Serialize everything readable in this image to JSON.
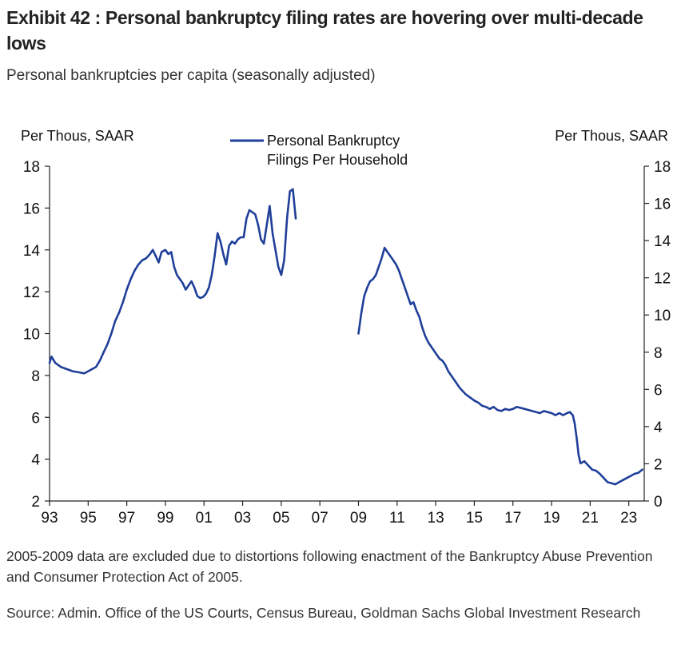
{
  "header": {
    "title": "Exhibit 42 : Personal bankruptcy filing rates are hovering over multi-decade lows",
    "subtitle": "Personal bankruptcies per capita (seasonally adjusted)"
  },
  "notes": {
    "footnote": "2005-2009 data are excluded due to distortions following enactment of the Bankruptcy Abuse Prevention and Consumer Protection Act of 2005.",
    "source": "Source: Admin. Office of the US Courts, Census Bureau, Goldman Sachs Global Investment Research"
  },
  "colors": {
    "line": "#1f3f99",
    "axis": "#222222"
  },
  "chart_data": {
    "type": "line",
    "title": "Exhibit 42 : Personal bankruptcy filing rates are hovering over multi-decade lows",
    "ylabel_left": "Per Thous,  SAAR",
    "ylabel_right": "Per Thous,  SAAR",
    "legend": {
      "label_line1": "Personal Bankruptcy",
      "label_line2": "Filings Per Household",
      "position": "top-center"
    },
    "xlim": [
      1993,
      2023.8
    ],
    "ylim_left": [
      2,
      18
    ],
    "ylim_right": [
      0,
      18
    ],
    "yticks_left": [
      2,
      4,
      6,
      8,
      10,
      12,
      14,
      16,
      18
    ],
    "yticks_right": [
      0,
      2,
      4,
      6,
      8,
      10,
      12,
      14,
      16,
      18
    ],
    "xticks": [
      {
        "value": 1993,
        "label": "93"
      },
      {
        "value": 1995,
        "label": "95"
      },
      {
        "value": 1997,
        "label": "97"
      },
      {
        "value": 1999,
        "label": "99"
      },
      {
        "value": 2001,
        "label": "01"
      },
      {
        "value": 2003,
        "label": "03"
      },
      {
        "value": 2005,
        "label": "05"
      },
      {
        "value": 2007,
        "label": "07"
      },
      {
        "value": 2009,
        "label": "09"
      },
      {
        "value": 2011,
        "label": "11"
      },
      {
        "value": 2013,
        "label": "13"
      },
      {
        "value": 2015,
        "label": "15"
      },
      {
        "value": 2017,
        "label": "17"
      },
      {
        "value": 2019,
        "label": "19"
      },
      {
        "value": 2021,
        "label": "21"
      },
      {
        "value": 2023,
        "label": "23"
      }
    ],
    "series": [
      {
        "name": "Personal Bankruptcy Filings Per Household",
        "segments": [
          [
            [
              1993.0,
              8.6
            ],
            [
              1993.1,
              8.9
            ],
            [
              1993.3,
              8.6
            ],
            [
              1993.6,
              8.4
            ],
            [
              1993.9,
              8.3
            ],
            [
              1994.2,
              8.2
            ],
            [
              1994.5,
              8.15
            ],
            [
              1994.8,
              8.1
            ],
            [
              1995.0,
              8.2
            ],
            [
              1995.2,
              8.3
            ],
            [
              1995.4,
              8.4
            ],
            [
              1995.6,
              8.7
            ],
            [
              1995.8,
              9.1
            ],
            [
              1996.0,
              9.5
            ],
            [
              1996.2,
              10.0
            ],
            [
              1996.4,
              10.6
            ],
            [
              1996.6,
              11.0
            ],
            [
              1996.8,
              11.5
            ],
            [
              1997.0,
              12.1
            ],
            [
              1997.2,
              12.6
            ],
            [
              1997.4,
              13.0
            ],
            [
              1997.6,
              13.3
            ],
            [
              1997.8,
              13.5
            ],
            [
              1998.0,
              13.6
            ],
            [
              1998.2,
              13.8
            ],
            [
              1998.35,
              14.0
            ],
            [
              1998.5,
              13.7
            ],
            [
              1998.65,
              13.4
            ],
            [
              1998.8,
              13.9
            ],
            [
              1999.0,
              14.0
            ],
            [
              1999.15,
              13.8
            ],
            [
              1999.3,
              13.9
            ],
            [
              1999.45,
              13.2
            ],
            [
              1999.6,
              12.8
            ],
            [
              1999.75,
              12.6
            ],
            [
              1999.9,
              12.4
            ],
            [
              2000.05,
              12.1
            ],
            [
              2000.2,
              12.3
            ],
            [
              2000.35,
              12.5
            ],
            [
              2000.5,
              12.2
            ],
            [
              2000.65,
              11.8
            ],
            [
              2000.8,
              11.7
            ],
            [
              2000.95,
              11.75
            ],
            [
              2001.1,
              11.9
            ],
            [
              2001.25,
              12.2
            ],
            [
              2001.4,
              12.8
            ],
            [
              2001.55,
              13.7
            ],
            [
              2001.7,
              14.8
            ],
            [
              2001.85,
              14.4
            ],
            [
              2002.0,
              13.8
            ],
            [
              2002.15,
              13.3
            ],
            [
              2002.3,
              14.2
            ],
            [
              2002.45,
              14.4
            ],
            [
              2002.6,
              14.3
            ],
            [
              2002.75,
              14.5
            ],
            [
              2002.9,
              14.6
            ],
            [
              2003.05,
              14.6
            ],
            [
              2003.2,
              15.5
            ],
            [
              2003.35,
              15.9
            ],
            [
              2003.5,
              15.8
            ],
            [
              2003.65,
              15.7
            ],
            [
              2003.8,
              15.2
            ],
            [
              2003.95,
              14.5
            ],
            [
              2004.1,
              14.3
            ],
            [
              2004.25,
              15.2
            ],
            [
              2004.4,
              16.1
            ],
            [
              2004.55,
              14.8
            ],
            [
              2004.7,
              14.0
            ],
            [
              2004.85,
              13.2
            ],
            [
              2005.0,
              12.8
            ],
            [
              2005.15,
              13.5
            ],
            [
              2005.3,
              15.5
            ],
            [
              2005.45,
              16.8
            ],
            [
              2005.6,
              16.9
            ],
            [
              2005.75,
              15.5
            ]
          ],
          [
            [
              2009.0,
              10.0
            ],
            [
              2009.15,
              11.0
            ],
            [
              2009.3,
              11.8
            ],
            [
              2009.45,
              12.2
            ],
            [
              2009.6,
              12.5
            ],
            [
              2009.75,
              12.6
            ],
            [
              2009.9,
              12.8
            ],
            [
              2010.05,
              13.2
            ],
            [
              2010.2,
              13.6
            ],
            [
              2010.35,
              14.1
            ],
            [
              2010.5,
              13.9
            ],
            [
              2010.65,
              13.7
            ],
            [
              2010.8,
              13.5
            ],
            [
              2010.95,
              13.3
            ],
            [
              2011.1,
              13.0
            ],
            [
              2011.25,
              12.6
            ],
            [
              2011.4,
              12.2
            ],
            [
              2011.55,
              11.8
            ],
            [
              2011.7,
              11.4
            ],
            [
              2011.85,
              11.5
            ],
            [
              2012.0,
              11.1
            ],
            [
              2012.15,
              10.8
            ],
            [
              2012.3,
              10.3
            ],
            [
              2012.45,
              9.9
            ],
            [
              2012.6,
              9.6
            ],
            [
              2012.75,
              9.4
            ],
            [
              2012.9,
              9.2
            ],
            [
              2013.05,
              9.0
            ],
            [
              2013.2,
              8.8
            ],
            [
              2013.35,
              8.7
            ],
            [
              2013.5,
              8.5
            ],
            [
              2013.65,
              8.2
            ],
            [
              2013.8,
              8.0
            ],
            [
              2013.95,
              7.8
            ],
            [
              2014.1,
              7.6
            ],
            [
              2014.25,
              7.4
            ],
            [
              2014.4,
              7.25
            ],
            [
              2014.55,
              7.1
            ],
            [
              2014.7,
              7.0
            ],
            [
              2014.85,
              6.9
            ],
            [
              2015.0,
              6.8
            ],
            [
              2015.2,
              6.7
            ],
            [
              2015.4,
              6.55
            ],
            [
              2015.6,
              6.5
            ],
            [
              2015.8,
              6.4
            ],
            [
              2016.0,
              6.5
            ],
            [
              2016.2,
              6.35
            ],
            [
              2016.4,
              6.3
            ],
            [
              2016.6,
              6.4
            ],
            [
              2016.8,
              6.35
            ],
            [
              2017.0,
              6.4
            ],
            [
              2017.2,
              6.5
            ],
            [
              2017.4,
              6.45
            ],
            [
              2017.6,
              6.4
            ],
            [
              2017.8,
              6.35
            ],
            [
              2018.0,
              6.3
            ],
            [
              2018.2,
              6.25
            ],
            [
              2018.4,
              6.2
            ],
            [
              2018.6,
              6.3
            ],
            [
              2018.8,
              6.25
            ],
            [
              2019.0,
              6.2
            ],
            [
              2019.2,
              6.1
            ],
            [
              2019.4,
              6.2
            ],
            [
              2019.6,
              6.1
            ],
            [
              2019.8,
              6.2
            ],
            [
              2019.95,
              6.25
            ],
            [
              2020.1,
              6.1
            ],
            [
              2020.2,
              5.7
            ],
            [
              2020.3,
              5.0
            ],
            [
              2020.4,
              4.2
            ],
            [
              2020.5,
              3.8
            ],
            [
              2020.7,
              3.9
            ],
            [
              2020.9,
              3.7
            ],
            [
              2021.1,
              3.5
            ],
            [
              2021.3,
              3.45
            ],
            [
              2021.5,
              3.3
            ],
            [
              2021.7,
              3.1
            ],
            [
              2021.9,
              2.9
            ],
            [
              2022.1,
              2.85
            ],
            [
              2022.3,
              2.8
            ],
            [
              2022.5,
              2.9
            ],
            [
              2022.7,
              3.0
            ],
            [
              2022.9,
              3.1
            ],
            [
              2023.1,
              3.2
            ],
            [
              2023.3,
              3.3
            ],
            [
              2023.5,
              3.35
            ],
            [
              2023.7,
              3.5
            ]
          ]
        ]
      }
    ]
  }
}
